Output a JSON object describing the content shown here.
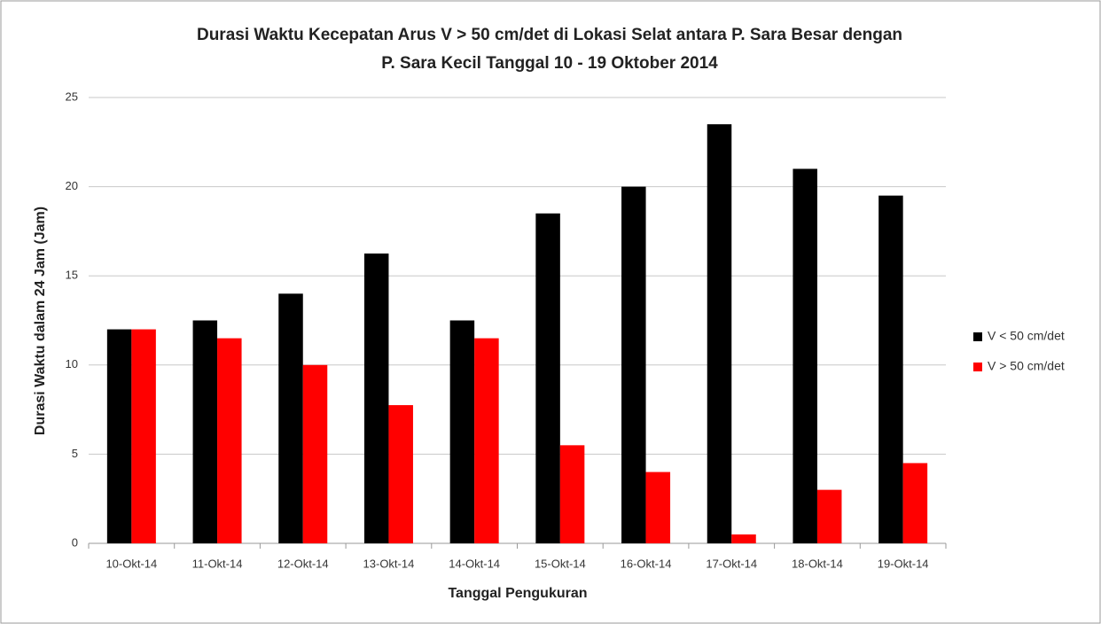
{
  "chart_data": {
    "type": "bar",
    "title": [
      "Durasi Waktu Kecepatan Arus V > 50 cm/det di Lokasi Selat antara P. Sara Besar dengan",
      "P. Sara Kecil  Tanggal 10 - 19 Oktober 2014"
    ],
    "x_label": "Tanggal Pengukuran",
    "y_label": "Durasi Waktu dalam 24 Jam (Jam)",
    "categories": [
      "10-Okt-14",
      "11-Okt-14",
      "12-Okt-14",
      "13-Okt-14",
      "14-Okt-14",
      "15-Okt-14",
      "16-Okt-14",
      "17-Okt-14",
      "18-Okt-14",
      "19-Okt-14"
    ],
    "series": [
      {
        "name": "V < 50 cm/det",
        "color": "#000000",
        "values": [
          12,
          12.5,
          14,
          16.25,
          12.5,
          18.5,
          20,
          23.5,
          21,
          19.5
        ]
      },
      {
        "name": "V > 50 cm/det",
        "color": "#ff0000",
        "values": [
          12,
          11.5,
          10,
          7.75,
          11.5,
          5.5,
          4,
          0.5,
          3,
          4.5
        ]
      }
    ],
    "ylim": [
      0,
      25
    ],
    "yticks": [
      0,
      5,
      10,
      15,
      20,
      25
    ],
    "grid": true,
    "legend": "right"
  }
}
